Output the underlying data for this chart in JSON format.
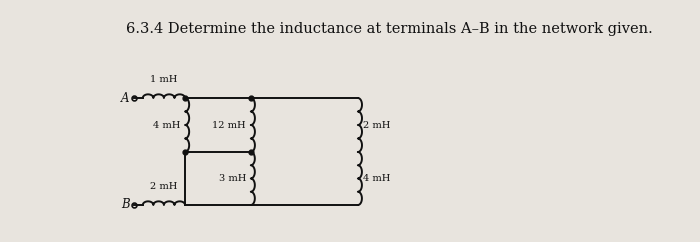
{
  "title": "6.3.4 Determine the inductance at terminals A–B in the network given.",
  "title_fontsize": 10.5,
  "background_color": "#e8e4de",
  "text_color": "#111111",
  "labels": {
    "A": "A",
    "B": "B",
    "1mH": "1 mH",
    "2mH_top": "2 mH",
    "4mH_left": "4 mH",
    "12mH": "12 mH",
    "3mH": "3 mH",
    "4mH_right": "4 mH",
    "2mH_bot": "2 mH"
  },
  "lw": 1.4
}
